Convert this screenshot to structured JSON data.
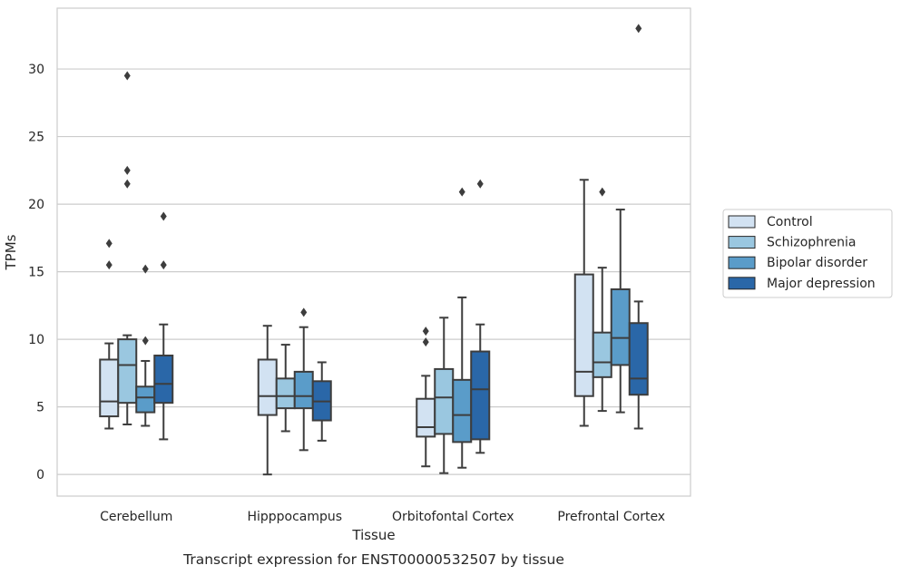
{
  "chart_data": {
    "type": "box",
    "xlabel": "Tissue",
    "ylabel": "TPMs",
    "caption": "Transcript expression for ENST00000532507 by tissue",
    "ylim": [
      -1.6,
      34.5
    ],
    "yticks": [
      0,
      5,
      10,
      15,
      20,
      25,
      30
    ],
    "grid": "horizontal",
    "legend_position": "right",
    "categories": [
      "Cerebellum",
      "Hipppocampus",
      "Orbitofontal Cortex",
      "Prefrontal Cortex"
    ],
    "series": [
      {
        "name": "Control",
        "color": "#d2e2f2",
        "boxes": [
          {
            "whislo": 3.4,
            "q1": 4.3,
            "med": 5.4,
            "q3": 8.5,
            "whishi": 9.7,
            "fliers": [
              15.5,
              17.1
            ]
          },
          {
            "whislo": 0.0,
            "q1": 4.4,
            "med": 5.8,
            "q3": 8.5,
            "whishi": 11.0,
            "fliers": []
          },
          {
            "whislo": 0.6,
            "q1": 2.8,
            "med": 3.5,
            "q3": 5.6,
            "whishi": 7.3,
            "fliers": [
              9.8,
              10.6
            ]
          },
          {
            "whislo": 3.6,
            "q1": 5.8,
            "med": 7.6,
            "q3": 14.8,
            "whishi": 21.8,
            "fliers": []
          }
        ]
      },
      {
        "name": "Schizophrenia",
        "color": "#9ac7e0",
        "boxes": [
          {
            "whislo": 3.7,
            "q1": 5.3,
            "med": 8.1,
            "q3": 10.0,
            "whishi": 10.3,
            "fliers": [
              21.5,
              22.5,
              29.5
            ]
          },
          {
            "whislo": 3.2,
            "q1": 4.9,
            "med": 5.8,
            "q3": 7.1,
            "whishi": 9.6,
            "fliers": []
          },
          {
            "whislo": 0.1,
            "q1": 3.0,
            "med": 5.7,
            "q3": 7.8,
            "whishi": 11.6,
            "fliers": []
          },
          {
            "whislo": 4.7,
            "q1": 7.2,
            "med": 8.3,
            "q3": 10.5,
            "whishi": 15.3,
            "fliers": [
              20.9
            ]
          }
        ]
      },
      {
        "name": "Bipolar disorder",
        "color": "#5a9cc9",
        "boxes": [
          {
            "whislo": 3.6,
            "q1": 4.6,
            "med": 5.7,
            "q3": 6.5,
            "whishi": 8.4,
            "fliers": [
              9.9,
              15.2
            ]
          },
          {
            "whislo": 1.8,
            "q1": 4.9,
            "med": 5.8,
            "q3": 7.6,
            "whishi": 10.9,
            "fliers": [
              12.0
            ]
          },
          {
            "whislo": 0.5,
            "q1": 2.4,
            "med": 4.4,
            "q3": 7.0,
            "whishi": 13.1,
            "fliers": [
              20.9
            ]
          },
          {
            "whislo": 4.6,
            "q1": 8.1,
            "med": 10.1,
            "q3": 13.7,
            "whishi": 19.6,
            "fliers": []
          }
        ]
      },
      {
        "name": "Major depression",
        "color": "#2a67a8",
        "boxes": [
          {
            "whislo": 2.6,
            "q1": 5.3,
            "med": 6.7,
            "q3": 8.8,
            "whishi": 11.1,
            "fliers": [
              15.5,
              19.1
            ]
          },
          {
            "whislo": 2.5,
            "q1": 4.0,
            "med": 5.4,
            "q3": 6.9,
            "whishi": 8.3,
            "fliers": []
          },
          {
            "whislo": 1.6,
            "q1": 2.6,
            "med": 6.3,
            "q3": 9.1,
            "whishi": 11.1,
            "fliers": [
              21.5
            ]
          },
          {
            "whislo": 3.4,
            "q1": 5.9,
            "med": 7.1,
            "q3": 11.2,
            "whishi": 12.8,
            "fliers": [
              33.0
            ]
          }
        ]
      }
    ]
  }
}
